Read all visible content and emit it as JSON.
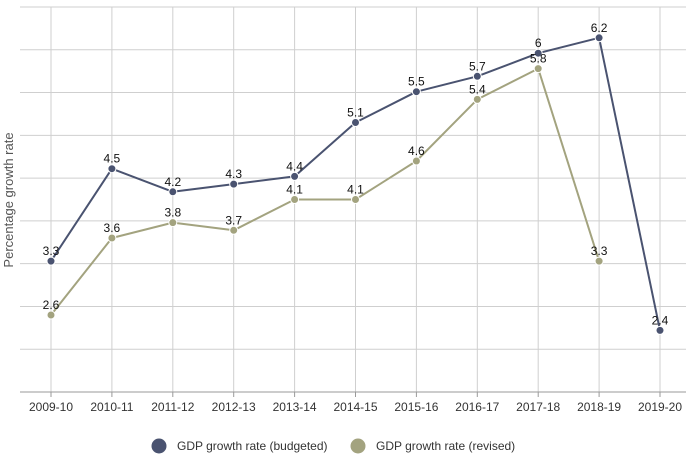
{
  "chart_data": {
    "type": "line",
    "title": "",
    "xlabel": "",
    "ylabel": "Percentage growth rate",
    "ylim": [
      1.6,
      6.6
    ],
    "grid": true,
    "legend_position": "bottom-center",
    "categories": [
      "2009-10",
      "2010-11",
      "2011-12",
      "2012-13",
      "2013-14",
      "2014-15",
      "2015-16",
      "2016-17",
      "2017-18",
      "2018-19",
      "2019-20"
    ],
    "series": [
      {
        "name": "GDP growth rate (budgeted)",
        "color": "#4a5370",
        "values": [
          3.3,
          4.5,
          4.2,
          4.3,
          4.4,
          5.1,
          5.5,
          5.7,
          6,
          6.2,
          2.4
        ]
      },
      {
        "name": "GDP growth rate (revised)",
        "color": "#a3a37f",
        "values": [
          2.6,
          3.6,
          3.8,
          3.7,
          4.1,
          4.1,
          4.6,
          5.4,
          5.8,
          3.3,
          null
        ]
      }
    ]
  }
}
